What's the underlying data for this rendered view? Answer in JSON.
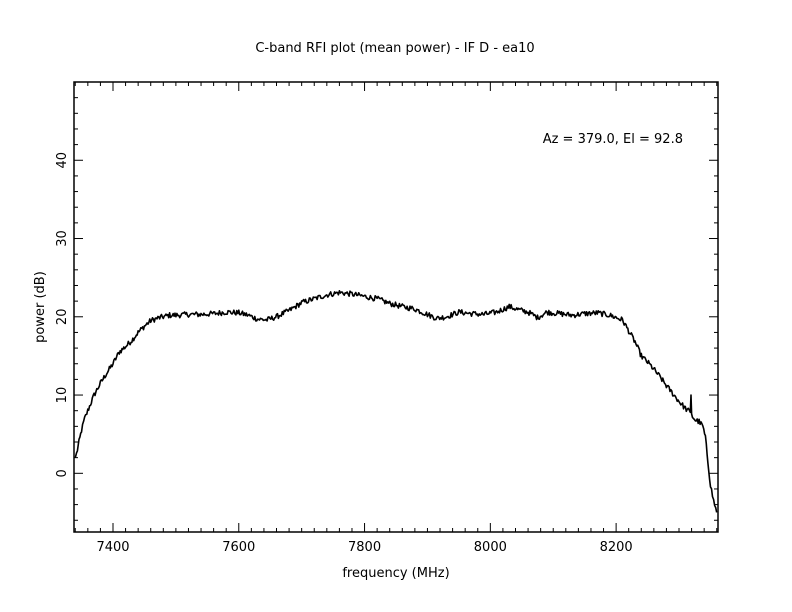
{
  "chart_data": {
    "type": "line",
    "title": "C-band RFI plot (mean power) - IF D - ea10",
    "xlabel": "frequency (MHz)",
    "ylabel": "power (dB)",
    "annotation": "Az = 379.0, El = 92.8",
    "xlim": [
      7338,
      8362
    ],
    "ylim": [
      -7.5,
      50
    ],
    "x_major_ticks": [
      7400,
      7600,
      7800,
      8000,
      8200
    ],
    "x_tick_labels": [
      "7400",
      "7600",
      "7800",
      "8000",
      "8200"
    ],
    "x_minor_step": 20,
    "y_major_ticks": [
      0,
      10,
      20,
      30,
      40
    ],
    "y_tick_labels": [
      "0",
      "10",
      "20",
      "30",
      "40"
    ],
    "y_minor_step": 2,
    "grid": false,
    "line_color": "#000000",
    "series": [
      {
        "x": [
          7340,
          7342,
          7346,
          7350,
          7355,
          7360,
          7370,
          7380,
          7390,
          7400,
          7410,
          7420,
          7430,
          7440,
          7450,
          7460,
          7470,
          7480,
          7490,
          7500,
          7520,
          7540,
          7560,
          7580,
          7600,
          7615,
          7630,
          7645,
          7660,
          7680,
          7700,
          7720,
          7740,
          7760,
          7780,
          7800,
          7820,
          7840,
          7860,
          7880,
          7900,
          7915,
          7930,
          7950,
          7970,
          7990,
          8010,
          8030,
          8045,
          8060,
          8075,
          8090,
          8110,
          8130,
          8150,
          8170,
          8190,
          8200,
          8210,
          8220,
          8230,
          8240,
          8250,
          8260,
          8270,
          8280,
          8290,
          8300,
          8310,
          8318,
          8319,
          8320,
          8326,
          8332,
          8338,
          8342,
          8346,
          8350,
          8355,
          8360
        ],
        "values": [
          2.0,
          2.5,
          4.0,
          5.5,
          7.0,
          8.0,
          10.0,
          11.5,
          12.8,
          14.0,
          15.5,
          16.2,
          17.0,
          18.0,
          18.8,
          19.5,
          19.8,
          20.0,
          20.2,
          20.2,
          20.3,
          20.3,
          20.4,
          20.6,
          20.5,
          20.2,
          19.7,
          19.6,
          20.0,
          20.8,
          21.8,
          22.3,
          22.8,
          23.1,
          22.9,
          22.6,
          22.3,
          21.7,
          21.3,
          21.0,
          20.3,
          19.8,
          20.0,
          20.6,
          20.4,
          20.3,
          20.6,
          21.3,
          20.9,
          20.6,
          19.9,
          20.6,
          20.4,
          20.2,
          20.4,
          20.5,
          20.2,
          19.9,
          19.6,
          18.2,
          16.8,
          15.0,
          14.2,
          13.3,
          12.3,
          11.2,
          10.2,
          9.2,
          8.3,
          7.8,
          10.0,
          7.4,
          6.8,
          6.6,
          6.0,
          4.5,
          1.5,
          -1.5,
          -3.5,
          -5.0
        ]
      }
    ]
  }
}
